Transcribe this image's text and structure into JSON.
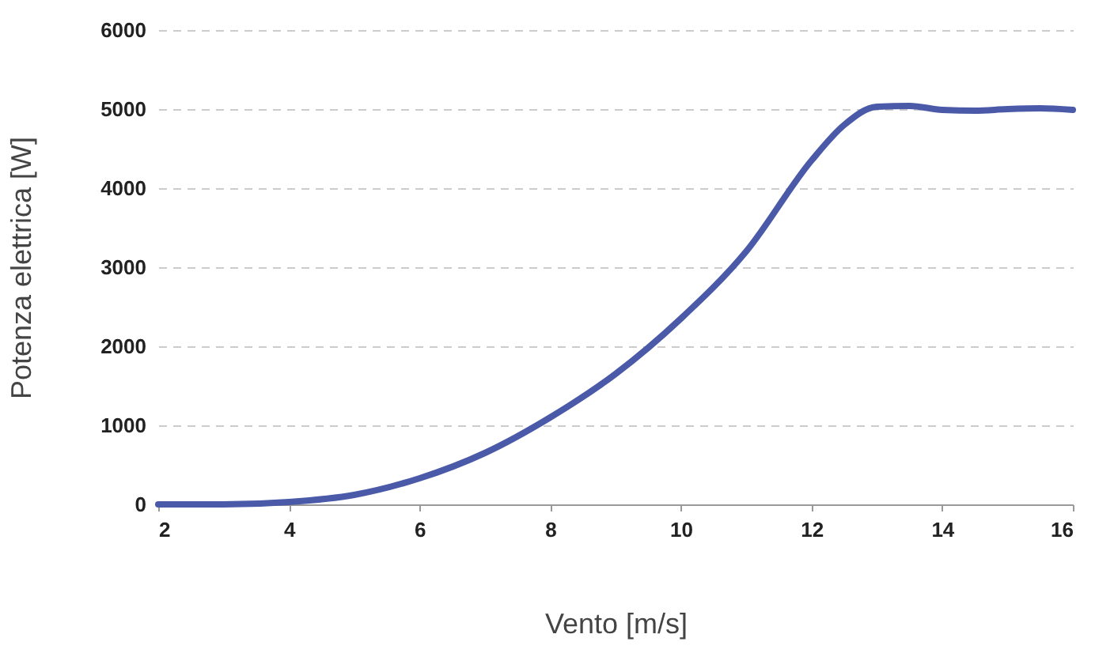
{
  "chart_data": {
    "type": "line",
    "xlabel": "Vento [m/s]",
    "ylabel": "Potenza elettrica [W]",
    "x": [
      2,
      3,
      4,
      5,
      6,
      7,
      8,
      9,
      10,
      11,
      12,
      12.5,
      13,
      13.5,
      14,
      14.5,
      15,
      15.5,
      16
    ],
    "series": [
      {
        "color": "#4a5aa8",
        "values": [
          0,
          0,
          30,
          120,
          330,
          650,
          1100,
          1650,
          2350,
          3200,
          4350,
          4800,
          5030,
          5040,
          4990,
          4980,
          5000,
          5010,
          4990
        ]
      }
    ],
    "xlim": [
      2,
      16
    ],
    "xticks": [
      2,
      4,
      6,
      8,
      10,
      12,
      14,
      16
    ],
    "ylim": [
      0,
      6000
    ],
    "yticks": [
      0,
      1000,
      2000,
      3000,
      4000,
      5000,
      6000
    ],
    "grid": "y",
    "line_style": "solid"
  }
}
